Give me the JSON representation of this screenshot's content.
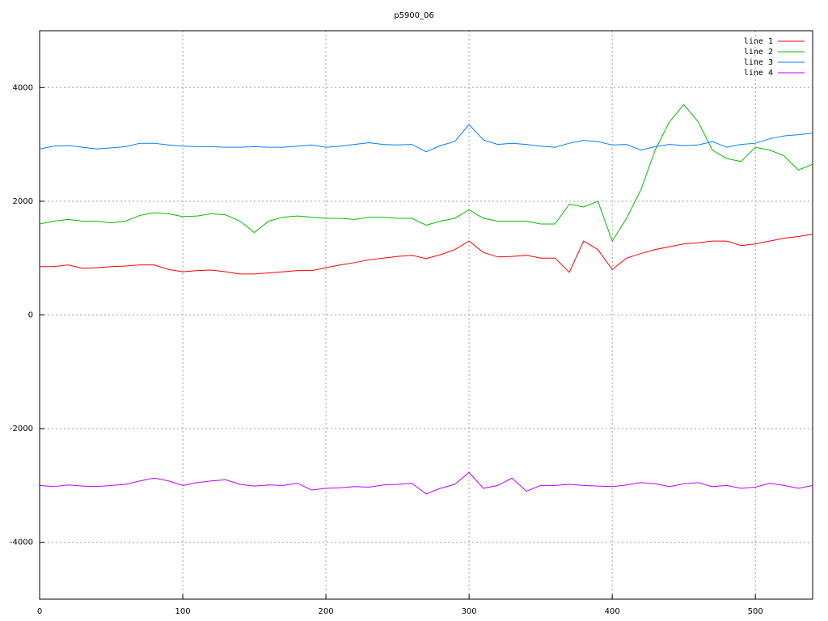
{
  "chart_data": {
    "type": "line",
    "title": "p5900_06",
    "x": [
      0,
      10,
      20,
      30,
      40,
      50,
      60,
      70,
      80,
      90,
      100,
      110,
      120,
      130,
      140,
      150,
      160,
      170,
      180,
      190,
      200,
      210,
      220,
      230,
      240,
      250,
      260,
      270,
      280,
      290,
      300,
      310,
      320,
      330,
      340,
      350,
      360,
      370,
      380,
      390,
      400,
      410,
      420,
      430,
      440,
      450,
      460,
      470,
      480,
      490,
      500,
      510,
      520,
      530,
      540
    ],
    "series": [
      {
        "name": "line 1",
        "color": "#ff0000",
        "values": [
          850,
          850,
          880,
          820,
          830,
          850,
          860,
          880,
          880,
          800,
          760,
          780,
          790,
          760,
          720,
          720,
          740,
          760,
          780,
          780,
          830,
          880,
          920,
          970,
          1000,
          1030,
          1050,
          990,
          1060,
          1150,
          1300,
          1100,
          1020,
          1030,
          1050,
          1000,
          1000,
          750,
          1300,
          1150,
          800,
          1000,
          1080,
          1150,
          1200,
          1250,
          1270,
          1300,
          1300,
          1220,
          1250,
          1300,
          1350,
          1380,
          1420
        ]
      },
      {
        "name": "line 2",
        "color": "#00c000",
        "values": [
          1600,
          1650,
          1680,
          1650,
          1650,
          1620,
          1650,
          1750,
          1800,
          1780,
          1730,
          1740,
          1780,
          1760,
          1650,
          1450,
          1650,
          1720,
          1740,
          1720,
          1700,
          1700,
          1680,
          1720,
          1720,
          1700,
          1700,
          1580,
          1650,
          1700,
          1850,
          1700,
          1650,
          1650,
          1650,
          1600,
          1600,
          1950,
          1900,
          2000,
          1300,
          1700,
          2200,
          2900,
          3400,
          3700,
          3400,
          2900,
          2750,
          2700,
          2950,
          2900,
          2800,
          2550,
          2650
        ]
      },
      {
        "name": "line 3",
        "color": "#0080ff",
        "values": [
          2920,
          2970,
          2980,
          2950,
          2920,
          2940,
          2960,
          3020,
          3020,
          2990,
          2970,
          2960,
          2960,
          2950,
          2950,
          2960,
          2950,
          2950,
          2970,
          2990,
          2950,
          2970,
          3000,
          3030,
          3000,
          2990,
          3000,
          2870,
          2980,
          3050,
          3350,
          3080,
          3000,
          3020,
          3000,
          2970,
          2950,
          3020,
          3070,
          3050,
          2990,
          3000,
          2900,
          2960,
          3000,
          2980,
          2990,
          3050,
          2950,
          3000,
          3020,
          3100,
          3150,
          3170,
          3200
        ]
      },
      {
        "name": "line 4",
        "color": "#c000ff",
        "values": [
          -3000,
          -3020,
          -2990,
          -3010,
          -3020,
          -3000,
          -2980,
          -2920,
          -2870,
          -2920,
          -3000,
          -2950,
          -2920,
          -2900,
          -2980,
          -3010,
          -2990,
          -3000,
          -2960,
          -3080,
          -3050,
          -3040,
          -3020,
          -3030,
          -2990,
          -2980,
          -2960,
          -3150,
          -3050,
          -2980,
          -2770,
          -3050,
          -3000,
          -2870,
          -3100,
          -3000,
          -3000,
          -2980,
          -3000,
          -3010,
          -3020,
          -2990,
          -2950,
          -2970,
          -3020,
          -2970,
          -2950,
          -3020,
          -3000,
          -3050,
          -3030,
          -2960,
          -3000,
          -3050,
          -3000
        ]
      }
    ],
    "xlim": [
      0,
      540
    ],
    "ylim": [
      -5000,
      5000
    ],
    "xticks": [
      0,
      100,
      200,
      300,
      400,
      500
    ],
    "yticks": [
      -4000,
      -2000,
      0,
      2000,
      4000
    ],
    "grid": true,
    "legend": "top-right"
  }
}
